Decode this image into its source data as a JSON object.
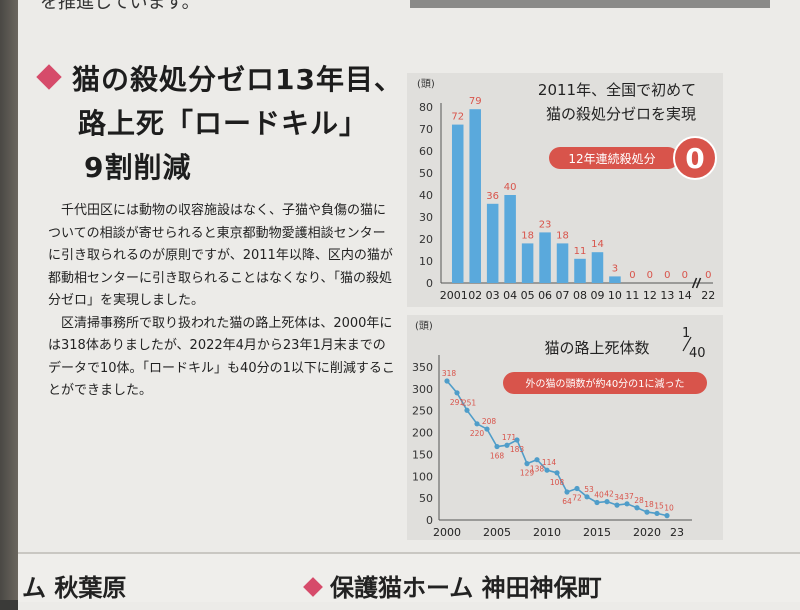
{
  "top_caption": "を推進しています。",
  "heading": {
    "line1": "猫の殺処分ゼロ13年目、",
    "line2": "路上死「ロードキル」",
    "line3": "9割削減"
  },
  "body_paragraphs": [
    "千代田区には動物の収容施設はなく、子猫や負傷の猫についての相談が寄せられると東京都動物愛護相談センターに引き取られるのが原則ですが、2011年以降、区内の猫が都動相センターに引き取られることはなくなり、「猫の殺処分ゼロ」を実現しました。",
    "区清掃事務所で取り扱われた猫の路上死体は、2000年には318体ありましたが、2022年4月から23年1月末までのデータで10体。「ロードキル」も40分の1以下に削減することができました。"
  ],
  "chart1": {
    "title_line1": "2011年、全国で初めて",
    "title_line2": "猫の殺処分ゼロを実現",
    "badge_label": "12年連続殺処分",
    "badge_value": "0",
    "accent": "#d8544b",
    "bar_color": "#5aa9dc"
  },
  "chart2": {
    "title": "猫の路上死体数",
    "fraction_num": "1",
    "fraction_den": "40",
    "badge_label": "外の猫の頭数が約40分の1に減った",
    "accent": "#d8544b",
    "line_color": "#4f9dc9"
  },
  "chart_data": [
    {
      "type": "bar",
      "ylabel": "(頭)",
      "ylim": [
        0,
        80
      ],
      "yticks": [
        0,
        10,
        20,
        30,
        40,
        50,
        60,
        70,
        80
      ],
      "categories": [
        "2001",
        "02",
        "03",
        "04",
        "05",
        "06",
        "07",
        "08",
        "09",
        "10",
        "11",
        "12",
        "13",
        "14",
        "22"
      ],
      "values": [
        72,
        79,
        36,
        40,
        18,
        23,
        18,
        11,
        14,
        3,
        0,
        0,
        0,
        0,
        0
      ],
      "axis_break_between": [
        "14",
        "22"
      ]
    },
    {
      "type": "line",
      "ylabel": "(頭)",
      "ylim": [
        0,
        350
      ],
      "yticks": [
        0,
        50,
        100,
        150,
        200,
        250,
        300,
        350
      ],
      "xticks": [
        "2000",
        "2005",
        "2010",
        "2015",
        "2020",
        "23"
      ],
      "points": [
        {
          "x": 2000,
          "y": 318
        },
        {
          "x": 2001,
          "y": 291
        },
        {
          "x": 2002,
          "y": 251
        },
        {
          "x": 2003,
          "y": 220
        },
        {
          "x": 2004,
          "y": 208
        },
        {
          "x": 2005,
          "y": 168
        },
        {
          "x": 2006,
          "y": 171
        },
        {
          "x": 2007,
          "y": 183
        },
        {
          "x": 2008,
          "y": 129
        },
        {
          "x": 2009,
          "y": 138
        },
        {
          "x": 2010,
          "y": 114
        },
        {
          "x": 2011,
          "y": 108
        },
        {
          "x": 2012,
          "y": 64
        },
        {
          "x": 2013,
          "y": 72
        },
        {
          "x": 2014,
          "y": 53
        },
        {
          "x": 2015,
          "y": 40
        },
        {
          "x": 2016,
          "y": 42
        },
        {
          "x": 2017,
          "y": 34
        },
        {
          "x": 2018,
          "y": 37
        },
        {
          "x": 2019,
          "y": 28
        },
        {
          "x": 2020,
          "y": 18
        },
        {
          "x": 2021,
          "y": 15
        },
        {
          "x": 2022,
          "y": 10
        }
      ]
    }
  ],
  "bottom": {
    "left_text": "ム 秋葉原",
    "right_text": "保護猫ホーム 神田神保町"
  }
}
